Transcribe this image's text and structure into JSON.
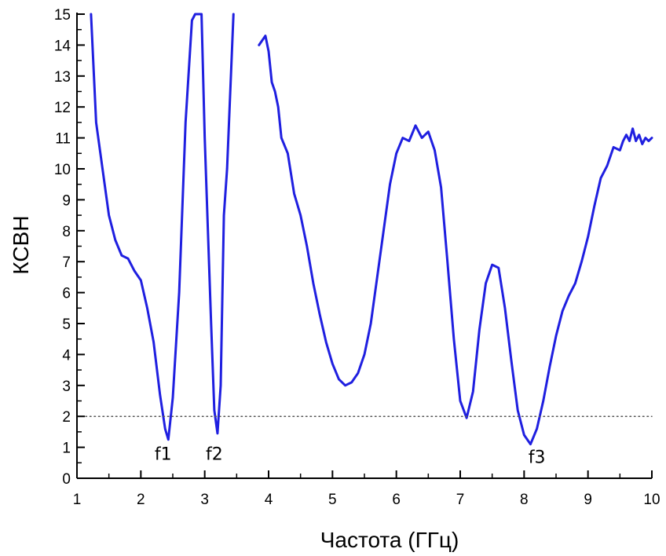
{
  "chart_data": {
    "type": "line",
    "title": "",
    "xlabel": "Частота (ГГц)",
    "ylabel": "КСВН",
    "xlim": [
      1,
      10
    ],
    "ylim": [
      0,
      15
    ],
    "xticks": [
      "1",
      "2",
      "3",
      "4",
      "5",
      "6",
      "7",
      "8",
      "9",
      "10"
    ],
    "yticks": [
      "0",
      "1",
      "2",
      "3",
      "4",
      "5",
      "6",
      "7",
      "8",
      "9",
      "10",
      "11",
      "12",
      "13",
      "14",
      "15"
    ],
    "grid": false,
    "legend": "none",
    "series": [
      {
        "color": "#1f1fe0",
        "x": [
          1.22,
          1.3,
          1.4,
          1.5,
          1.6,
          1.7,
          1.8,
          1.9,
          2.0,
          2.1,
          2.2,
          2.3,
          2.38,
          2.43,
          2.5,
          2.6,
          2.7,
          2.8,
          2.85,
          2.9,
          2.95,
          3.0,
          3.05,
          3.1,
          3.15,
          3.2,
          3.25,
          3.3,
          3.35,
          3.45
        ],
        "y": [
          15.0,
          11.5,
          10.0,
          8.5,
          7.7,
          7.2,
          7.1,
          6.7,
          6.4,
          5.5,
          4.4,
          2.7,
          1.6,
          1.25,
          2.6,
          6.0,
          11.5,
          14.8,
          15.0,
          15.0,
          15.0,
          11.0,
          8.0,
          5.0,
          2.2,
          1.45,
          3.0,
          8.5,
          10.0,
          15.0
        ]
      },
      {
        "color": "#1f1fe0",
        "x": [
          3.85,
          3.95,
          4.0,
          4.05,
          4.1,
          4.15,
          4.2,
          4.3,
          4.4,
          4.5,
          4.6,
          4.7,
          4.8,
          4.9,
          5.0,
          5.1,
          5.2,
          5.3,
          5.4,
          5.5,
          5.6,
          5.7,
          5.8,
          5.9,
          6.0,
          6.1,
          6.2,
          6.3,
          6.4,
          6.5,
          6.6,
          6.7,
          6.8,
          6.9,
          7.0,
          7.1,
          7.2,
          7.3,
          7.4,
          7.5,
          7.6,
          7.7,
          7.8,
          7.9,
          8.0,
          8.1,
          8.2,
          8.3,
          8.4,
          8.5,
          8.6,
          8.7,
          8.8,
          8.9,
          9.0,
          9.1,
          9.2,
          9.3,
          9.4,
          9.5,
          9.55,
          9.6,
          9.65,
          9.7,
          9.75,
          9.8,
          9.85,
          9.9,
          9.95,
          10.0
        ],
        "y": [
          14.0,
          14.3,
          13.8,
          12.8,
          12.5,
          12.0,
          11.0,
          10.5,
          9.2,
          8.5,
          7.5,
          6.3,
          5.3,
          4.4,
          3.7,
          3.2,
          3.0,
          3.1,
          3.4,
          4.0,
          5.0,
          6.5,
          8.0,
          9.5,
          10.5,
          11.0,
          10.9,
          11.4,
          11.0,
          11.2,
          10.6,
          9.4,
          7.0,
          4.5,
          2.5,
          1.95,
          2.8,
          4.8,
          6.3,
          6.9,
          6.8,
          5.5,
          3.8,
          2.2,
          1.4,
          1.1,
          1.6,
          2.5,
          3.6,
          4.6,
          5.4,
          5.9,
          6.3,
          7.0,
          7.8,
          8.8,
          9.7,
          10.1,
          10.7,
          10.6,
          10.9,
          11.1,
          10.9,
          11.3,
          10.9,
          11.1,
          10.8,
          11.0,
          10.9,
          11.0
        ]
      },
      {
        "color": "#555555",
        "style": "dotted",
        "x": [
          1.0,
          10.0
        ],
        "y": [
          2.0,
          2.0
        ]
      }
    ],
    "annotations": [
      {
        "text": "f1",
        "x": 2.35,
        "y": 0.6
      },
      {
        "text": "f2",
        "x": 3.15,
        "y": 0.6
      },
      {
        "text": "f3",
        "x": 8.2,
        "y": 0.5
      }
    ]
  }
}
